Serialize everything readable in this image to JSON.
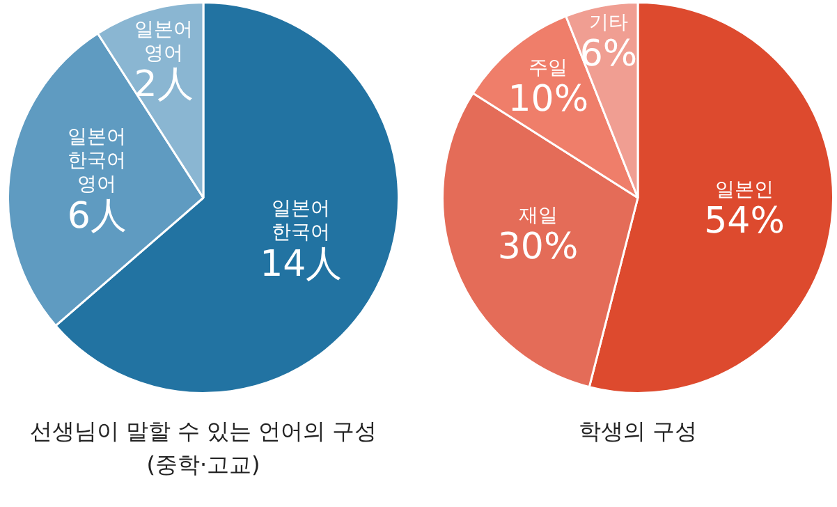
{
  "chart_data": [
    {
      "type": "pie",
      "title": "선생님이 말할 수 있는 언어의 구성\n(중학·고교)",
      "categories": [
        "일본어\n한국어",
        "일본어\n한국어\n영어",
        "일본어\n영어"
      ],
      "values": [
        14,
        6,
        2
      ],
      "value_labels": [
        "14人",
        "6人",
        "2人"
      ],
      "colors": [
        "#2273a2",
        "#5f9bc1",
        "#8ab6d2"
      ]
    },
    {
      "type": "pie",
      "title": "학생의 구성",
      "categories": [
        "일본인",
        "재일",
        "주일",
        "기타"
      ],
      "values": [
        54,
        30,
        10,
        6
      ],
      "value_labels": [
        "54%",
        "30%",
        "10%",
        "6%"
      ],
      "colors": [
        "#dd4a2e",
        "#e46c58",
        "#ef7e6a",
        "#f09e92"
      ]
    }
  ]
}
